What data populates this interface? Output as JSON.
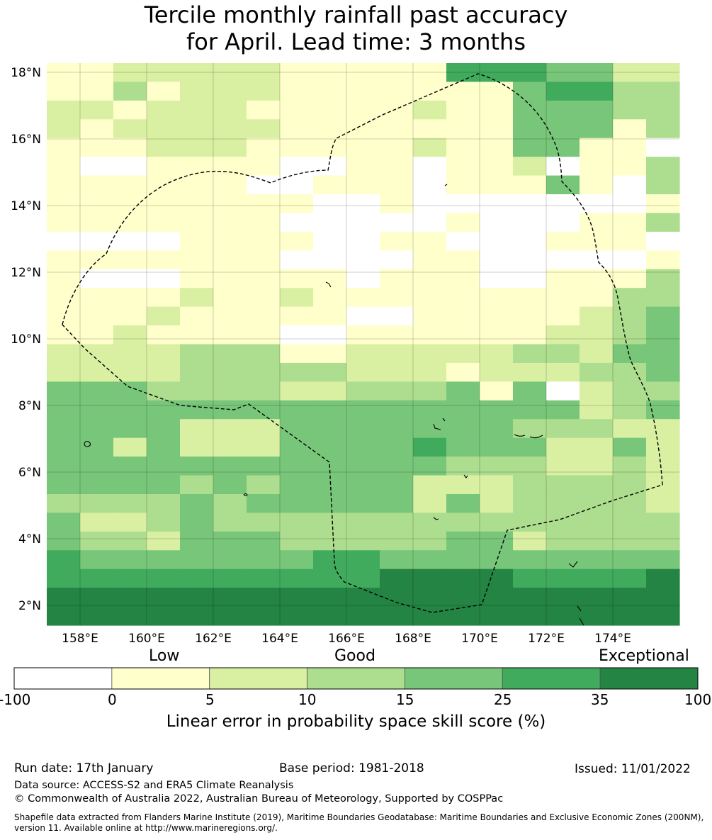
{
  "title": {
    "line1": "Tercile monthly rainfall past accuracy",
    "line2": "for April. Lead time: 3 months"
  },
  "map": {
    "lat_labels": [
      "18°N",
      "16°N",
      "14°N",
      "12°N",
      "10°N",
      "8°N",
      "6°N",
      "4°N",
      "2°N"
    ],
    "lon_labels": [
      "158°E",
      "160°E",
      "162°E",
      "164°E",
      "166°E",
      "168°E",
      "170°E",
      "172°E",
      "174°E"
    ],
    "grid_rows": [
      "1122222111115554422",
      "1131222111111145533",
      "2212221111121144433",
      "2122222111111144413",
      "1112221111121144110",
      "1001111001101120113",
      "1111110011101114103",
      "1111111100100000001",
      "1111111000001000113",
      "0000111100110001110",
      "1111111000011000001",
      "1000111110111001113",
      "1111211211111111133",
      "1112111110011111234",
      "1121111001111112234",
      "2222333112222233244",
      "2222333332221222334",
      "4443333223334140233",
      "4444444444444444234",
      "4444222444444433322",
      "4424222444454442242",
      "4444444444443332232",
      "4444343444422233332",
      "3333434444424233332",
      "4223433333333333333",
      "4332444333334423333",
      "5444444455444444444",
      "5555555555666655556",
      "6666666666666666666",
      "6666666666666666666"
    ],
    "legend_colors": [
      "#ffffff",
      "#ffffcc",
      "#d9f0a3",
      "#addd8e",
      "#78c679",
      "#41ab5d",
      "#238443"
    ]
  },
  "colorbar": {
    "categories": [
      "Low",
      "Good",
      "Exceptional"
    ],
    "ticks": [
      "-100",
      "0",
      "5",
      "10",
      "15",
      "25",
      "35",
      "100"
    ],
    "label": "Linear error in probability space skill score (%)"
  },
  "footer": {
    "run_date": "Run date: 17th January",
    "base_period": "Base period: 1981-2018",
    "issued": "Issued: 11/01/2022",
    "data_source": "Data source: ACCESS-S2 and ERA5 Climate Reanalysis",
    "copyright": "© Commonwealth of Australia 2022, Australian Bureau of Meteorology, Supported by COSPPac",
    "shapefile": "Shapefile data extracted from Flanders Marine Institute (2019), Maritime Boundaries Geodatabase: Maritime Boundaries and Exclusive Economic Zones (200NM), version 11. Available online at http://www.marineregions.org/."
  }
}
